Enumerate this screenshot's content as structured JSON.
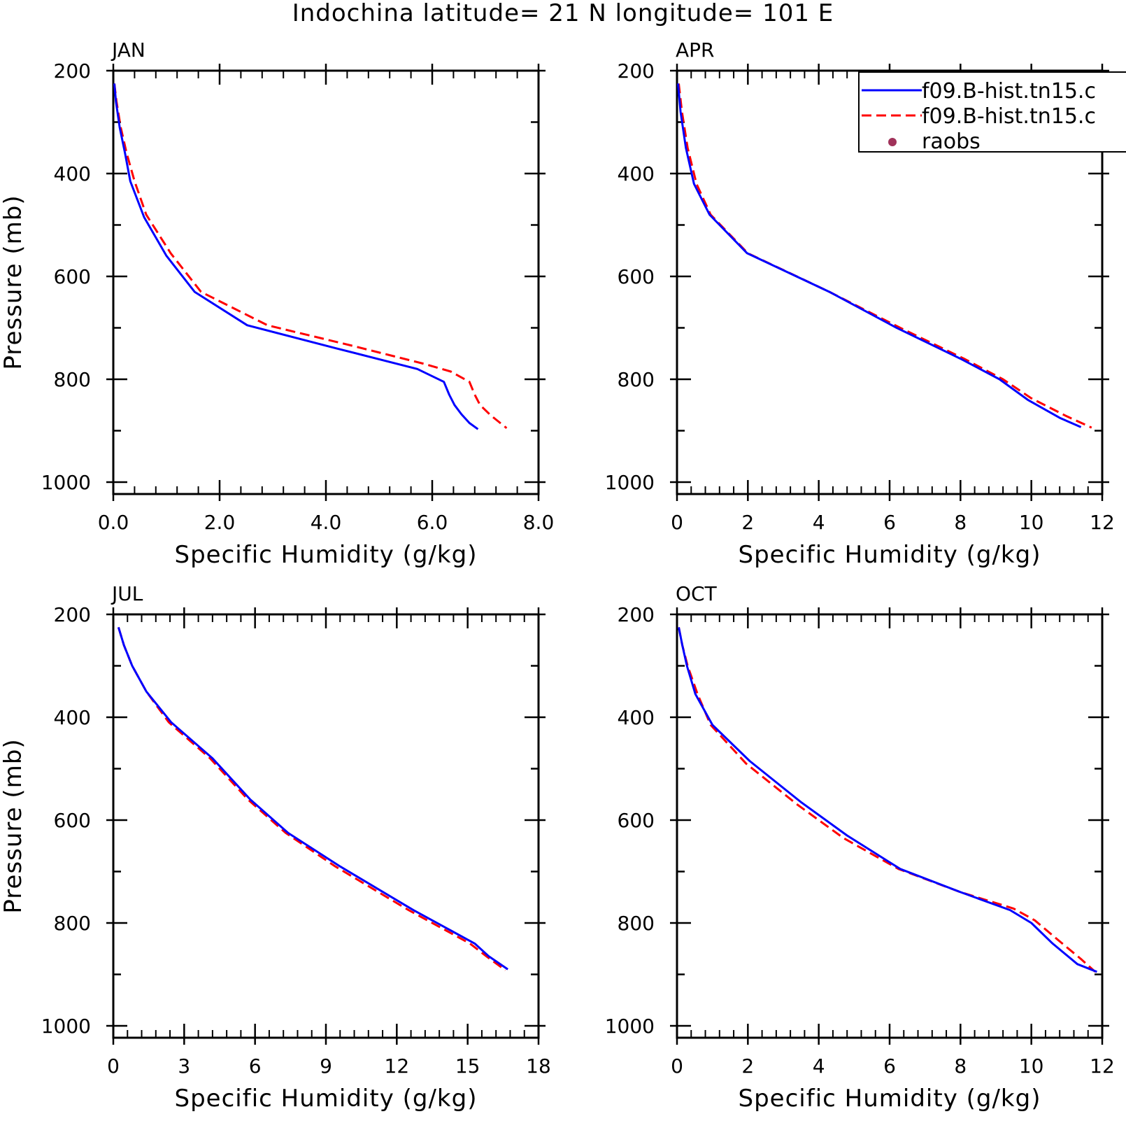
{
  "title": "Indochina  latitude= 21 N longitude= 101 E",
  "legend": {
    "entries": [
      {
        "label": "f09.B-hist.tn15.c",
        "color": "#0000ff",
        "style": "solid"
      },
      {
        "label": "f09.B-hist.tn15.c",
        "color": "#ff0000",
        "style": "dashed"
      },
      {
        "label": "raobs",
        "color": "#a0325a",
        "style": "marker"
      }
    ]
  },
  "chart_data": [
    {
      "type": "line",
      "panel": "JAN",
      "xlabel": "Specific Humidity (g/kg)",
      "ylabel": "Pressure (mb)",
      "xlim": [
        0,
        8
      ],
      "ylim": [
        200,
        1000
      ],
      "yreversed": true,
      "xticks": [
        "0.0",
        "2.0",
        "4.0",
        "6.0",
        "8.0"
      ],
      "xtick_values": [
        0,
        2,
        4,
        6,
        8
      ],
      "yticks": [
        "200",
        "400",
        "600",
        "800",
        "1000"
      ],
      "ytick_values": [
        200,
        400,
        600,
        800,
        1000
      ],
      "series": [
        {
          "color": "#0000ff",
          "style": "solid",
          "x": [
            0.02,
            0.05,
            0.12,
            0.22,
            0.32,
            0.58,
            1.0,
            1.53,
            2.52,
            4.2,
            5.72,
            6.22,
            6.32,
            6.42,
            6.55,
            6.7,
            6.86
          ],
          "y": [
            225,
            260,
            310,
            360,
            415,
            485,
            560,
            630,
            695,
            740,
            780,
            805,
            830,
            850,
            868,
            885,
            897
          ]
        },
        {
          "color": "#ff0000",
          "style": "dashed",
          "x": [
            0.02,
            0.06,
            0.14,
            0.25,
            0.4,
            0.62,
            1.08,
            1.65,
            2.9,
            4.5,
            5.85,
            6.35,
            6.7,
            6.8,
            6.9,
            7.1,
            7.4
          ],
          "y": [
            225,
            260,
            310,
            360,
            415,
            480,
            555,
            630,
            695,
            735,
            770,
            785,
            805,
            830,
            850,
            870,
            895
          ]
        }
      ]
    },
    {
      "type": "line",
      "panel": "APR",
      "xlabel": "Specific Humidity (g/kg)",
      "ylabel": "",
      "xlim": [
        0,
        12
      ],
      "ylim": [
        200,
        1000
      ],
      "yreversed": true,
      "xticks": [
        "0",
        "2",
        "4",
        "6",
        "8",
        "10",
        "12"
      ],
      "xtick_values": [
        0,
        2,
        4,
        6,
        8,
        10,
        12
      ],
      "yticks": [
        "200",
        "400",
        "600",
        "800",
        "1000"
      ],
      "ytick_values": [
        200,
        400,
        600,
        800,
        1000
      ],
      "series": [
        {
          "color": "#0000ff",
          "style": "solid",
          "x": [
            0.03,
            0.1,
            0.25,
            0.48,
            0.92,
            1.98,
            4.3,
            6.2,
            8.0,
            9.1,
            9.9,
            10.8,
            11.4
          ],
          "y": [
            225,
            280,
            350,
            420,
            480,
            555,
            630,
            700,
            760,
            800,
            840,
            875,
            893
          ]
        },
        {
          "color": "#ff0000",
          "style": "dashed",
          "x": [
            0.05,
            0.14,
            0.3,
            0.55,
            0.95,
            2.0,
            4.3,
            6.3,
            8.1,
            9.2,
            10.0,
            11.0,
            11.7
          ],
          "y": [
            225,
            280,
            350,
            420,
            480,
            555,
            630,
            700,
            760,
            800,
            837,
            872,
            894
          ]
        }
      ]
    },
    {
      "type": "line",
      "panel": "JUL",
      "xlabel": "Specific Humidity (g/kg)",
      "ylabel": "Pressure (mb)",
      "xlim": [
        0,
        18
      ],
      "ylim": [
        200,
        1000
      ],
      "yreversed": true,
      "xticks": [
        "0",
        "3",
        "6",
        "9",
        "12",
        "15",
        "18"
      ],
      "xtick_values": [
        0,
        3,
        6,
        9,
        12,
        15,
        18
      ],
      "yticks": [
        "200",
        "400",
        "600",
        "800",
        "1000"
      ],
      "ytick_values": [
        200,
        400,
        600,
        800,
        1000
      ],
      "series": [
        {
          "color": "#0000ff",
          "style": "solid",
          "x": [
            0.22,
            0.45,
            0.8,
            1.4,
            2.45,
            4.2,
            5.8,
            7.4,
            9.6,
            12.7,
            14.3,
            15.3,
            15.9,
            16.7
          ],
          "y": [
            225,
            260,
            300,
            350,
            410,
            480,
            560,
            625,
            690,
            775,
            815,
            840,
            865,
            890
          ]
        },
        {
          "color": "#ff0000",
          "style": "dashed",
          "x": [
            0.22,
            0.45,
            0.8,
            1.4,
            2.35,
            4.1,
            5.7,
            7.3,
            9.4,
            12.5,
            14.1,
            15.1,
            15.8,
            16.6
          ],
          "y": [
            225,
            260,
            300,
            350,
            410,
            480,
            560,
            625,
            690,
            775,
            815,
            840,
            865,
            892
          ]
        }
      ]
    },
    {
      "type": "line",
      "panel": "OCT",
      "xlabel": "Specific Humidity (g/kg)",
      "ylabel": "",
      "xlim": [
        0,
        12
      ],
      "ylim": [
        200,
        1000
      ],
      "yreversed": true,
      "xticks": [
        "0",
        "2",
        "4",
        "6",
        "8",
        "10",
        "12"
      ],
      "xtick_values": [
        0,
        2,
        4,
        6,
        8,
        10,
        12
      ],
      "yticks": [
        "200",
        "400",
        "600",
        "800",
        "1000"
      ],
      "ytick_values": [
        200,
        400,
        600,
        800,
        1000
      ],
      "series": [
        {
          "color": "#0000ff",
          "style": "solid",
          "x": [
            0.05,
            0.15,
            0.28,
            0.52,
            1.0,
            2.05,
            3.5,
            4.8,
            6.3,
            8.0,
            9.4,
            10.0,
            10.6,
            11.3,
            11.85
          ],
          "y": [
            225,
            260,
            300,
            355,
            415,
            485,
            565,
            630,
            695,
            740,
            775,
            800,
            840,
            880,
            895
          ]
        },
        {
          "color": "#ff0000",
          "style": "dashed",
          "x": [
            0.05,
            0.15,
            0.3,
            0.58,
            0.95,
            1.95,
            3.4,
            4.7,
            6.25,
            8.0,
            9.5,
            10.1,
            10.7,
            11.4,
            11.8
          ],
          "y": [
            225,
            260,
            300,
            355,
            415,
            490,
            570,
            635,
            695,
            740,
            772,
            795,
            830,
            870,
            895
          ]
        }
      ]
    }
  ]
}
